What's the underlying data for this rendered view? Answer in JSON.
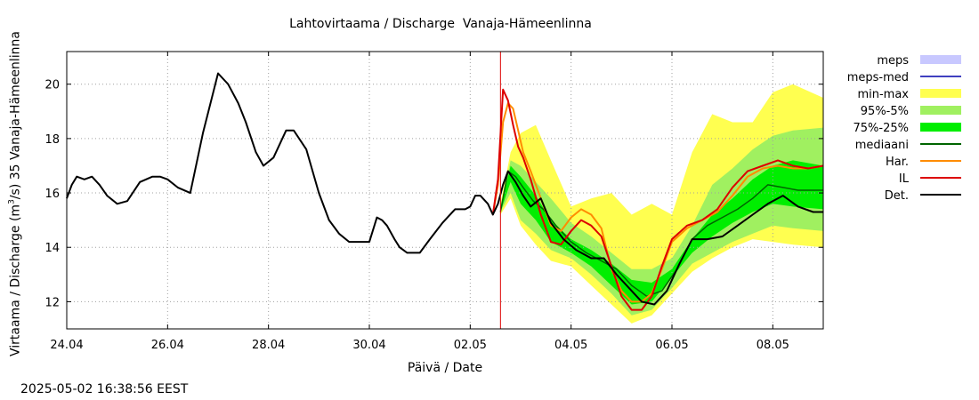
{
  "chart_data": {
    "type": "line",
    "title": "Lahtovirtaama / Discharge  Vanaja-Hämeenlinna",
    "xlabel": "Päivä / Date",
    "ylabel_pre": "Virtaama / Discharge (m",
    "ylabel_sup": "3",
    "ylabel_post": "/s)  35 Vanaja-Hämeenlinna",
    "timestamp": "2025-05-02 16:38:56 EEST",
    "x_tick_labels": [
      "24.04",
      "26.04",
      "28.04",
      "30.04",
      "02.05",
      "04.05",
      "06.05",
      "08.05"
    ],
    "x_tick_days": [
      0,
      2,
      4,
      6,
      8,
      10,
      12,
      14
    ],
    "xlim_days": [
      0,
      15
    ],
    "x_unit": "days from 24.04",
    "y_ticks": [
      12,
      14,
      16,
      18,
      20
    ],
    "ylim": [
      11,
      21.2
    ],
    "grid": true,
    "legend_position": "right",
    "forecast_start_day": 8.6,
    "legend": [
      {
        "label": "meps",
        "style": "band",
        "color": "#c8c8ff"
      },
      {
        "label": "meps-med",
        "style": "line",
        "color": "#4040c0"
      },
      {
        "label": "min-max",
        "style": "band",
        "color": "#ffff50"
      },
      {
        "label": "95%-5%",
        "style": "band",
        "color": "#a0f060"
      },
      {
        "label": "75%-25%",
        "style": "band",
        "color": "#00ee00"
      },
      {
        "label": "mediaani",
        "style": "line",
        "color": "#006400"
      },
      {
        "label": "Har.",
        "style": "line",
        "color": "#ff8c00"
      },
      {
        "label": "IL",
        "style": "line",
        "color": "#dd0000"
      },
      {
        "label": "Det.",
        "style": "line",
        "color": "#000000"
      }
    ],
    "bands": {
      "min-max": {
        "x": [
          8.6,
          8.8,
          9.0,
          9.3,
          9.6,
          10.0,
          10.4,
          10.8,
          11.2,
          11.6,
          12.0,
          12.4,
          12.8,
          13.2,
          13.6,
          14.0,
          14.4,
          15.0
        ],
        "upper": [
          15.6,
          17.5,
          18.2,
          18.5,
          17.2,
          15.5,
          15.8,
          16.0,
          15.2,
          15.6,
          15.2,
          17.5,
          18.9,
          18.6,
          18.6,
          19.7,
          20.0,
          19.5
        ],
        "lower": [
          15.2,
          15.8,
          14.8,
          14.1,
          13.5,
          13.3,
          12.6,
          11.9,
          11.2,
          11.5,
          12.3,
          13.1,
          13.6,
          14.0,
          14.3,
          14.2,
          14.1,
          14.0
        ]
      },
      "95%-5%": {
        "x": [
          8.6,
          8.8,
          9.0,
          9.3,
          9.6,
          10.0,
          10.4,
          10.8,
          11.2,
          11.6,
          12.0,
          12.4,
          12.8,
          13.2,
          13.6,
          14.0,
          14.4,
          15.0
        ],
        "upper": [
          15.5,
          17.2,
          17.0,
          16.4,
          15.8,
          14.9,
          14.4,
          13.8,
          13.2,
          13.2,
          13.6,
          14.8,
          16.3,
          16.9,
          17.6,
          18.1,
          18.3,
          18.4
        ],
        "lower": [
          15.3,
          16.0,
          15.0,
          14.5,
          13.9,
          13.6,
          13.0,
          12.3,
          11.5,
          11.7,
          12.5,
          13.4,
          13.8,
          14.2,
          14.5,
          14.8,
          14.7,
          14.6
        ]
      },
      "75%-25%": {
        "x": [
          8.6,
          8.8,
          9.0,
          9.3,
          9.6,
          10.0,
          10.4,
          10.8,
          11.2,
          11.6,
          12.0,
          12.4,
          12.8,
          13.2,
          13.6,
          14.0,
          14.4,
          15.0
        ],
        "upper": [
          15.4,
          17.0,
          16.6,
          15.9,
          15.0,
          14.3,
          13.9,
          13.4,
          12.8,
          12.7,
          13.2,
          14.3,
          15.2,
          15.8,
          16.5,
          17.0,
          17.2,
          17.0
        ],
        "lower": [
          15.3,
          16.4,
          15.6,
          15.0,
          14.2,
          13.8,
          13.3,
          12.6,
          11.9,
          12.0,
          12.9,
          13.8,
          14.4,
          14.9,
          15.3,
          15.6,
          15.5,
          15.4
        ]
      }
    },
    "series": [
      {
        "name": "Det.",
        "color": "#000000",
        "x": [
          0.0,
          0.1,
          0.2,
          0.35,
          0.5,
          0.65,
          0.8,
          1.0,
          1.2,
          1.45,
          1.7,
          1.85,
          2.0,
          2.2,
          2.45,
          2.7,
          3.0,
          3.2,
          3.4,
          3.55,
          3.75,
          3.9,
          4.1,
          4.35,
          4.5,
          4.75,
          5.0,
          5.2,
          5.4,
          5.6,
          5.8,
          6.0,
          6.15,
          6.25,
          6.35,
          6.5,
          6.6,
          6.75,
          7.0,
          7.2,
          7.45,
          7.7,
          7.9,
          8.0,
          8.1,
          8.2,
          8.35,
          8.45,
          8.55,
          8.65,
          8.75,
          8.9,
          9.05,
          9.2,
          9.4,
          9.6,
          9.85,
          10.1,
          10.4,
          10.65,
          10.9,
          11.15,
          11.4,
          11.65,
          11.9,
          12.15,
          12.4,
          12.7,
          13.0,
          13.3,
          13.6,
          13.9,
          14.2,
          14.5,
          14.8,
          15.0
        ],
        "y": [
          15.8,
          16.3,
          16.6,
          16.5,
          16.6,
          16.3,
          15.9,
          15.6,
          15.7,
          16.4,
          16.6,
          16.6,
          16.5,
          16.2,
          16.0,
          18.2,
          20.4,
          20.0,
          19.3,
          18.6,
          17.5,
          17.0,
          17.3,
          18.3,
          18.3,
          17.6,
          16.0,
          15.0,
          14.5,
          14.2,
          14.2,
          14.2,
          15.1,
          15.0,
          14.8,
          14.3,
          14.0,
          13.8,
          13.8,
          14.3,
          14.9,
          15.4,
          15.4,
          15.5,
          15.9,
          15.9,
          15.6,
          15.2,
          15.6,
          16.3,
          16.8,
          16.4,
          15.9,
          15.5,
          15.8,
          14.9,
          14.3,
          13.9,
          13.6,
          13.6,
          13.0,
          12.5,
          12.0,
          11.9,
          12.4,
          13.4,
          14.3,
          14.3,
          14.4,
          14.8,
          15.2,
          15.6,
          15.9,
          15.5,
          15.3,
          15.3
        ]
      },
      {
        "name": "mediaani",
        "color": "#006400",
        "x": [
          8.6,
          8.75,
          8.9,
          9.05,
          9.25,
          9.45,
          9.7,
          10.0,
          10.3,
          10.6,
          10.9,
          11.2,
          11.5,
          11.8,
          12.1,
          12.4,
          12.7,
          13.0,
          13.3,
          13.6,
          13.9,
          14.2,
          14.5,
          14.8,
          15.0
        ],
        "y": [
          15.3,
          16.8,
          16.6,
          16.2,
          15.7,
          15.4,
          14.8,
          14.2,
          13.8,
          13.5,
          13.2,
          12.6,
          12.2,
          12.4,
          13.2,
          14.3,
          14.8,
          15.1,
          15.4,
          15.8,
          16.3,
          16.2,
          16.1,
          16.1,
          16.1
        ]
      },
      {
        "name": "Har.",
        "color": "#ff8c00",
        "x": [
          8.45,
          8.55,
          8.65,
          8.75,
          8.85,
          8.95,
          9.05,
          9.2,
          9.4,
          9.6,
          9.8,
          10.0,
          10.2,
          10.4,
          10.6,
          10.8,
          11.0,
          11.2,
          11.4,
          11.6,
          11.8,
          12.0,
          12.3,
          12.6,
          12.9,
          13.2,
          13.5,
          13.8,
          14.1,
          14.4,
          14.7,
          15.0
        ],
        "y": [
          15.2,
          16.3,
          18.6,
          19.3,
          19.1,
          18.3,
          17.5,
          16.8,
          15.8,
          14.8,
          14.6,
          15.1,
          15.4,
          15.2,
          14.7,
          13.2,
          12.4,
          12.0,
          12.0,
          12.3,
          13.2,
          14.2,
          14.7,
          15.0,
          15.3,
          15.9,
          16.6,
          16.9,
          17.0,
          16.9,
          16.9,
          17.0
        ]
      },
      {
        "name": "IL",
        "color": "#dd0000",
        "x": [
          8.45,
          8.55,
          8.65,
          8.75,
          8.85,
          8.95,
          9.05,
          9.2,
          9.4,
          9.6,
          9.8,
          10.0,
          10.2,
          10.4,
          10.6,
          10.8,
          11.0,
          11.2,
          11.4,
          11.6,
          11.8,
          12.0,
          12.3,
          12.6,
          12.9,
          13.2,
          13.5,
          13.8,
          14.1,
          14.4,
          14.7,
          15.0
        ],
        "y": [
          15.2,
          16.5,
          19.8,
          19.4,
          18.5,
          17.7,
          17.3,
          16.5,
          15.2,
          14.2,
          14.1,
          14.6,
          15.0,
          14.8,
          14.4,
          13.3,
          12.2,
          11.7,
          11.7,
          12.2,
          13.3,
          14.3,
          14.8,
          15.0,
          15.4,
          16.2,
          16.8,
          17.0,
          17.2,
          17.0,
          16.9,
          17.0
        ]
      }
    ]
  }
}
